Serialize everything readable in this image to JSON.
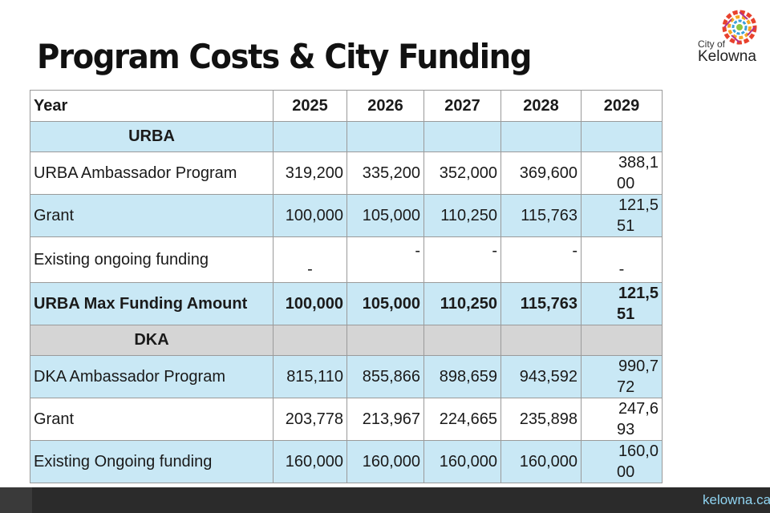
{
  "slide": {
    "title": "Program Costs & City Funding"
  },
  "logo": {
    "line1": "City of",
    "line2": "Kelowna",
    "icon": "kelowna-sun-logo-icon"
  },
  "footer": {
    "url": "kelowna.ca"
  },
  "table": {
    "header": [
      "Year",
      "2025",
      "2026",
      "2027",
      "2028",
      "2029"
    ],
    "sections": [
      {
        "name": "URBA",
        "rows": [
          {
            "label": "URBA Ambassador Program",
            "values": [
              "319,200",
              "335,200",
              "352,000",
              "369,600"
            ],
            "last": [
              "388,1",
              "00"
            ]
          },
          {
            "label": "Grant",
            "values": [
              "100,000",
              "105,000",
              "110,250",
              "115,763"
            ],
            "last": [
              "121,5",
              "51"
            ]
          },
          {
            "label": "Existing ongoing funding",
            "values": [
              "-",
              "-",
              "-",
              "-"
            ],
            "last": [
              "",
              "-"
            ]
          },
          {
            "label": "URBA Max Funding Amount",
            "values": [
              "100,000",
              "105,000",
              "110,250",
              "115,763"
            ],
            "last": [
              "121,5",
              "51"
            ]
          }
        ]
      },
      {
        "name": "DKA",
        "rows": [
          {
            "label": "DKA Ambassador Program",
            "values": [
              "815,110",
              "855,866",
              "898,659",
              "943,592"
            ],
            "last": [
              "990,7",
              "72"
            ]
          },
          {
            "label": "Grant",
            "values": [
              "203,778",
              "213,967",
              "224,665",
              "235,898"
            ],
            "last": [
              "247,6",
              "93"
            ]
          },
          {
            "label": "Existing Ongoing funding",
            "values": [
              "160,000",
              "160,000",
              "160,000",
              "160,000"
            ],
            "last": [
              "160,0",
              "00"
            ]
          }
        ]
      }
    ]
  },
  "colors": {
    "row_blue": "#c9e8f5",
    "row_gray": "#d5d5d5"
  }
}
